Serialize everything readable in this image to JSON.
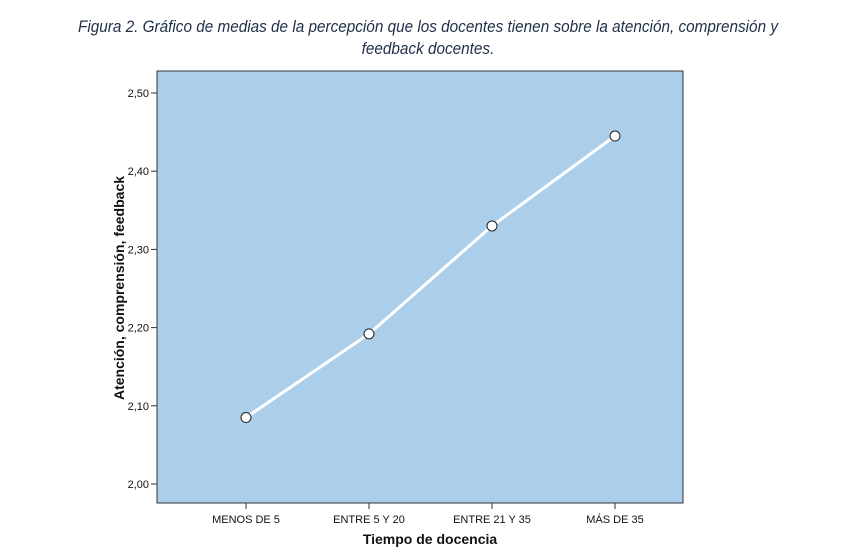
{
  "caption": {
    "line1": "Figura 2. Gráfico de medias de la percepción que los docentes tienen sobre la atención, comprensión y",
    "line2": "feedback docentes."
  },
  "chart_data": {
    "type": "line",
    "categories": [
      "MENOS DE 5",
      "ENTRE 5 Y 20",
      "ENTRE 21 Y 35",
      "MÁS DE 35"
    ],
    "values": [
      2.085,
      2.192,
      2.33,
      2.445
    ],
    "xlabel": "Tiempo de docencia",
    "ylabel": "Atención, comprensión, feedback",
    "ylim": [
      2.0,
      2.5
    ],
    "yticks": [
      "2,00",
      "2,10",
      "2,20",
      "2,30",
      "2,40",
      "2,50"
    ],
    "grid": false,
    "colors": {
      "plot_background": "#abcfeb",
      "line": "#ffffff",
      "marker_fill": "#ffffff",
      "marker_stroke": "#222222"
    }
  }
}
